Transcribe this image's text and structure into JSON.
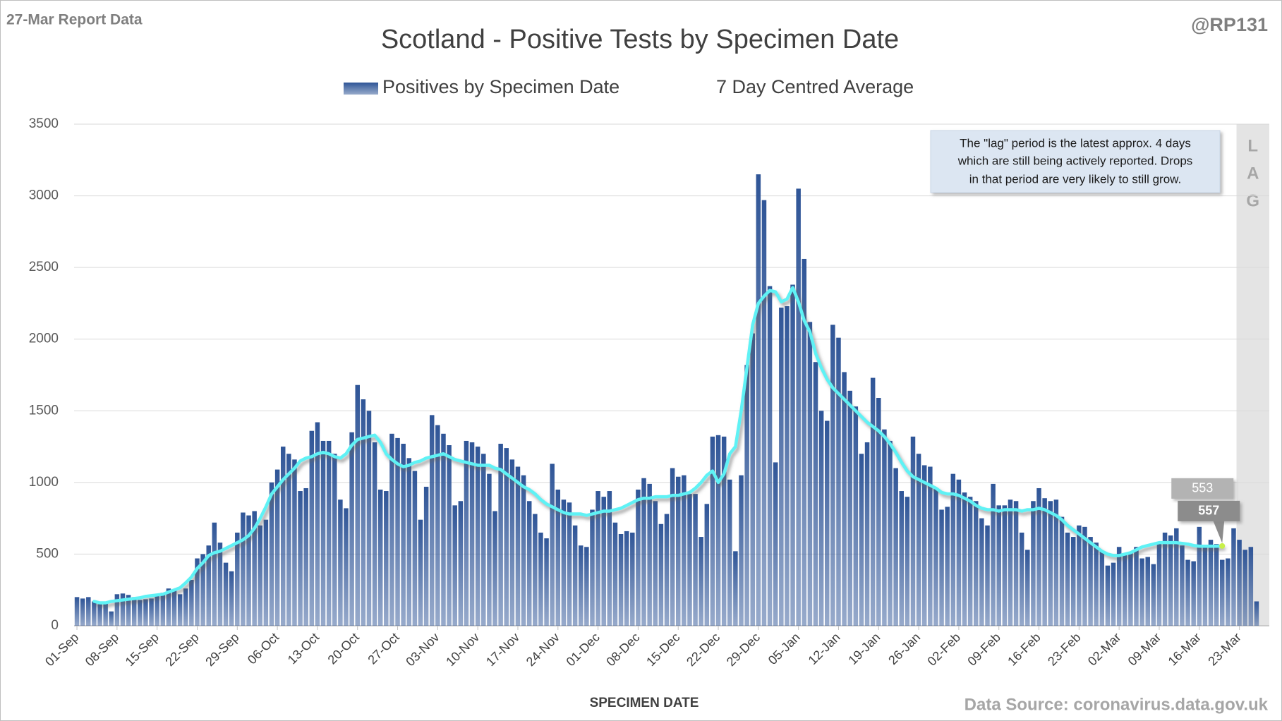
{
  "chart_data": {
    "type": "bar",
    "title": "Scotland - Positive Tests by Specimen Date",
    "report_label": "27-Mar Report Data",
    "handle": "@RP131",
    "source": "Data Source: coronavirus.data.gov.uk",
    "x_title": "SPECIMEN DATE",
    "note": [
      "The \"lag\" period is the latest approx. 4 days",
      "which are still being actively reported.  Drops",
      "in that period are very likely to still grow."
    ],
    "lag_label": [
      "L",
      "A",
      "G"
    ],
    "callouts": [
      553,
      557
    ],
    "ylim": [
      0,
      3500
    ],
    "yticks": [
      0,
      500,
      1000,
      1500,
      2000,
      2500,
      3000,
      3500
    ],
    "grid": true,
    "categories": [
      "01-Sep",
      null,
      null,
      null,
      null,
      null,
      null,
      "08-Sep",
      null,
      null,
      null,
      null,
      null,
      null,
      "15-Sep",
      null,
      null,
      null,
      null,
      null,
      null,
      "22-Sep",
      null,
      null,
      null,
      null,
      null,
      null,
      "29-Sep",
      null,
      null,
      null,
      null,
      null,
      null,
      "06-Oct",
      null,
      null,
      null,
      null,
      null,
      null,
      "13-Oct",
      null,
      null,
      null,
      null,
      null,
      null,
      "20-Oct",
      null,
      null,
      null,
      null,
      null,
      null,
      "27-Oct",
      null,
      null,
      null,
      null,
      null,
      null,
      "03-Nov",
      null,
      null,
      null,
      null,
      null,
      null,
      "10-Nov",
      null,
      null,
      null,
      null,
      null,
      null,
      "17-Nov",
      null,
      null,
      null,
      null,
      null,
      null,
      "24-Nov",
      null,
      null,
      null,
      null,
      null,
      null,
      "01-Dec",
      null,
      null,
      null,
      null,
      null,
      null,
      "08-Dec",
      null,
      null,
      null,
      null,
      null,
      null,
      "15-Dec",
      null,
      null,
      null,
      null,
      null,
      null,
      "22-Dec",
      null,
      null,
      null,
      null,
      null,
      null,
      "29-Dec",
      null,
      null,
      null,
      null,
      null,
      null,
      "05-Jan",
      null,
      null,
      null,
      null,
      null,
      null,
      "12-Jan",
      null,
      null,
      null,
      null,
      null,
      null,
      "19-Jan",
      null,
      null,
      null,
      null,
      null,
      null,
      "26-Jan",
      null,
      null,
      null,
      null,
      null,
      null,
      "02-Feb",
      null,
      null,
      null,
      null,
      null,
      null,
      "09-Feb",
      null,
      null,
      null,
      null,
      null,
      null,
      "16-Feb",
      null,
      null,
      null,
      null,
      null,
      null,
      "23-Feb",
      null,
      null,
      null,
      null,
      null,
      null,
      "02-Mar",
      null,
      null,
      null,
      null,
      null,
      null,
      "09-Mar",
      null,
      null,
      null,
      null,
      null,
      null,
      "16-Mar",
      null,
      null,
      null,
      null,
      null,
      null,
      "23-Mar",
      null,
      null,
      null
    ],
    "series": [
      {
        "name": "Positives by Specimen Date",
        "type": "bar",
        "color": "#2f5597",
        "values": [
          200,
          190,
          200,
          170,
          150,
          160,
          100,
          220,
          225,
          215,
          200,
          180,
          185,
          190,
          220,
          230,
          260,
          250,
          220,
          260,
          320,
          470,
          500,
          560,
          720,
          580,
          440,
          380,
          650,
          790,
          770,
          800,
          700,
          740,
          1000,
          1090,
          1250,
          1200,
          1160,
          940,
          960,
          1360,
          1420,
          1290,
          1290,
          1200,
          880,
          820,
          1350,
          1680,
          1580,
          1500,
          1280,
          950,
          940,
          1340,
          1310,
          1270,
          1170,
          1080,
          740,
          970,
          1470,
          1400,
          1340,
          1260,
          840,
          870,
          1290,
          1280,
          1250,
          1200,
          1060,
          800,
          1270,
          1240,
          1160,
          1110,
          1050,
          870,
          780,
          650,
          610,
          1130,
          950,
          880,
          860,
          700,
          560,
          550,
          810,
          940,
          900,
          940,
          720,
          640,
          660,
          650,
          950,
          1030,
          990,
          870,
          710,
          780,
          1100,
          1040,
          1050,
          920,
          920,
          620,
          850,
          1320,
          1330,
          1320,
          1020,
          520,
          1050,
          1820,
          2040,
          3150,
          2970,
          2370,
          1140,
          2220,
          2230,
          2380,
          3050,
          2560,
          2120,
          1840,
          1500,
          1430,
          2100,
          2010,
          1770,
          1640,
          1530,
          1200,
          1280,
          1730,
          1590,
          1370,
          1290,
          1100,
          940,
          900,
          1320,
          1200,
          1120,
          1110,
          960,
          810,
          830,
          1060,
          1020,
          930,
          900,
          870,
          750,
          700,
          990,
          840,
          840,
          880,
          870,
          650,
          530,
          870,
          960,
          890,
          870,
          880,
          760,
          650,
          620,
          700,
          690,
          620,
          580,
          520,
          420,
          440,
          550,
          500,
          510,
          550,
          470,
          480,
          430,
          580,
          650,
          630,
          680,
          560,
          460,
          450,
          690,
          560,
          600,
          570,
          460,
          470,
          680,
          600,
          530,
          550,
          170
        ]
      },
      {
        "name": "7 Day Centred Average",
        "type": "line",
        "color": "#5ef2f5",
        "values": [
          null,
          null,
          null,
          170,
          160,
          160,
          170,
          175,
          180,
          185,
          190,
          195,
          205,
          210,
          215,
          220,
          235,
          250,
          265,
          300,
          340,
          400,
          440,
          490,
          510,
          520,
          540,
          560,
          580,
          600,
          630,
          680,
          750,
          830,
          920,
          970,
          1020,
          1060,
          1100,
          1150,
          1170,
          1180,
          1200,
          1210,
          1200,
          1180,
          1170,
          1200,
          1260,
          1300,
          1310,
          1320,
          1330,
          1280,
          1200,
          1160,
          1130,
          1110,
          1120,
          1140,
          1150,
          1170,
          1180,
          1190,
          1200,
          1180,
          1160,
          1150,
          1140,
          1130,
          1120,
          1120,
          1120,
          1100,
          1090,
          1060,
          1030,
          1000,
          970,
          950,
          920,
          880,
          850,
          830,
          810,
          790,
          780,
          780,
          780,
          770,
          780,
          790,
          800,
          800,
          810,
          820,
          840,
          860,
          880,
          890,
          890,
          900,
          900,
          900,
          910,
          910,
          920,
          930,
          960,
          1000,
          1050,
          1080,
          1000,
          1060,
          1200,
          1250,
          1500,
          1800,
          2100,
          2250,
          2300,
          2340,
          2330,
          2260,
          2280,
          2360,
          2260,
          2130,
          2050,
          1900,
          1800,
          1720,
          1660,
          1620,
          1580,
          1540,
          1500,
          1460,
          1420,
          1390,
          1360,
          1320,
          1270,
          1210,
          1140,
          1080,
          1040,
          1020,
          1000,
          980,
          960,
          930,
          920,
          920,
          910,
          890,
          870,
          840,
          820,
          810,
          810,
          800,
          810,
          810,
          810,
          800,
          810,
          810,
          820,
          810,
          790,
          770,
          740,
          700,
          670,
          640,
          610,
          580,
          550,
          520,
          500,
          490,
          490,
          500,
          510,
          530,
          550,
          560,
          570,
          580,
          580,
          580,
          580,
          575,
          570,
          560,
          555,
          555,
          555,
          555,
          557,
          null,
          null,
          null,
          null,
          null,
          null
        ]
      }
    ]
  }
}
